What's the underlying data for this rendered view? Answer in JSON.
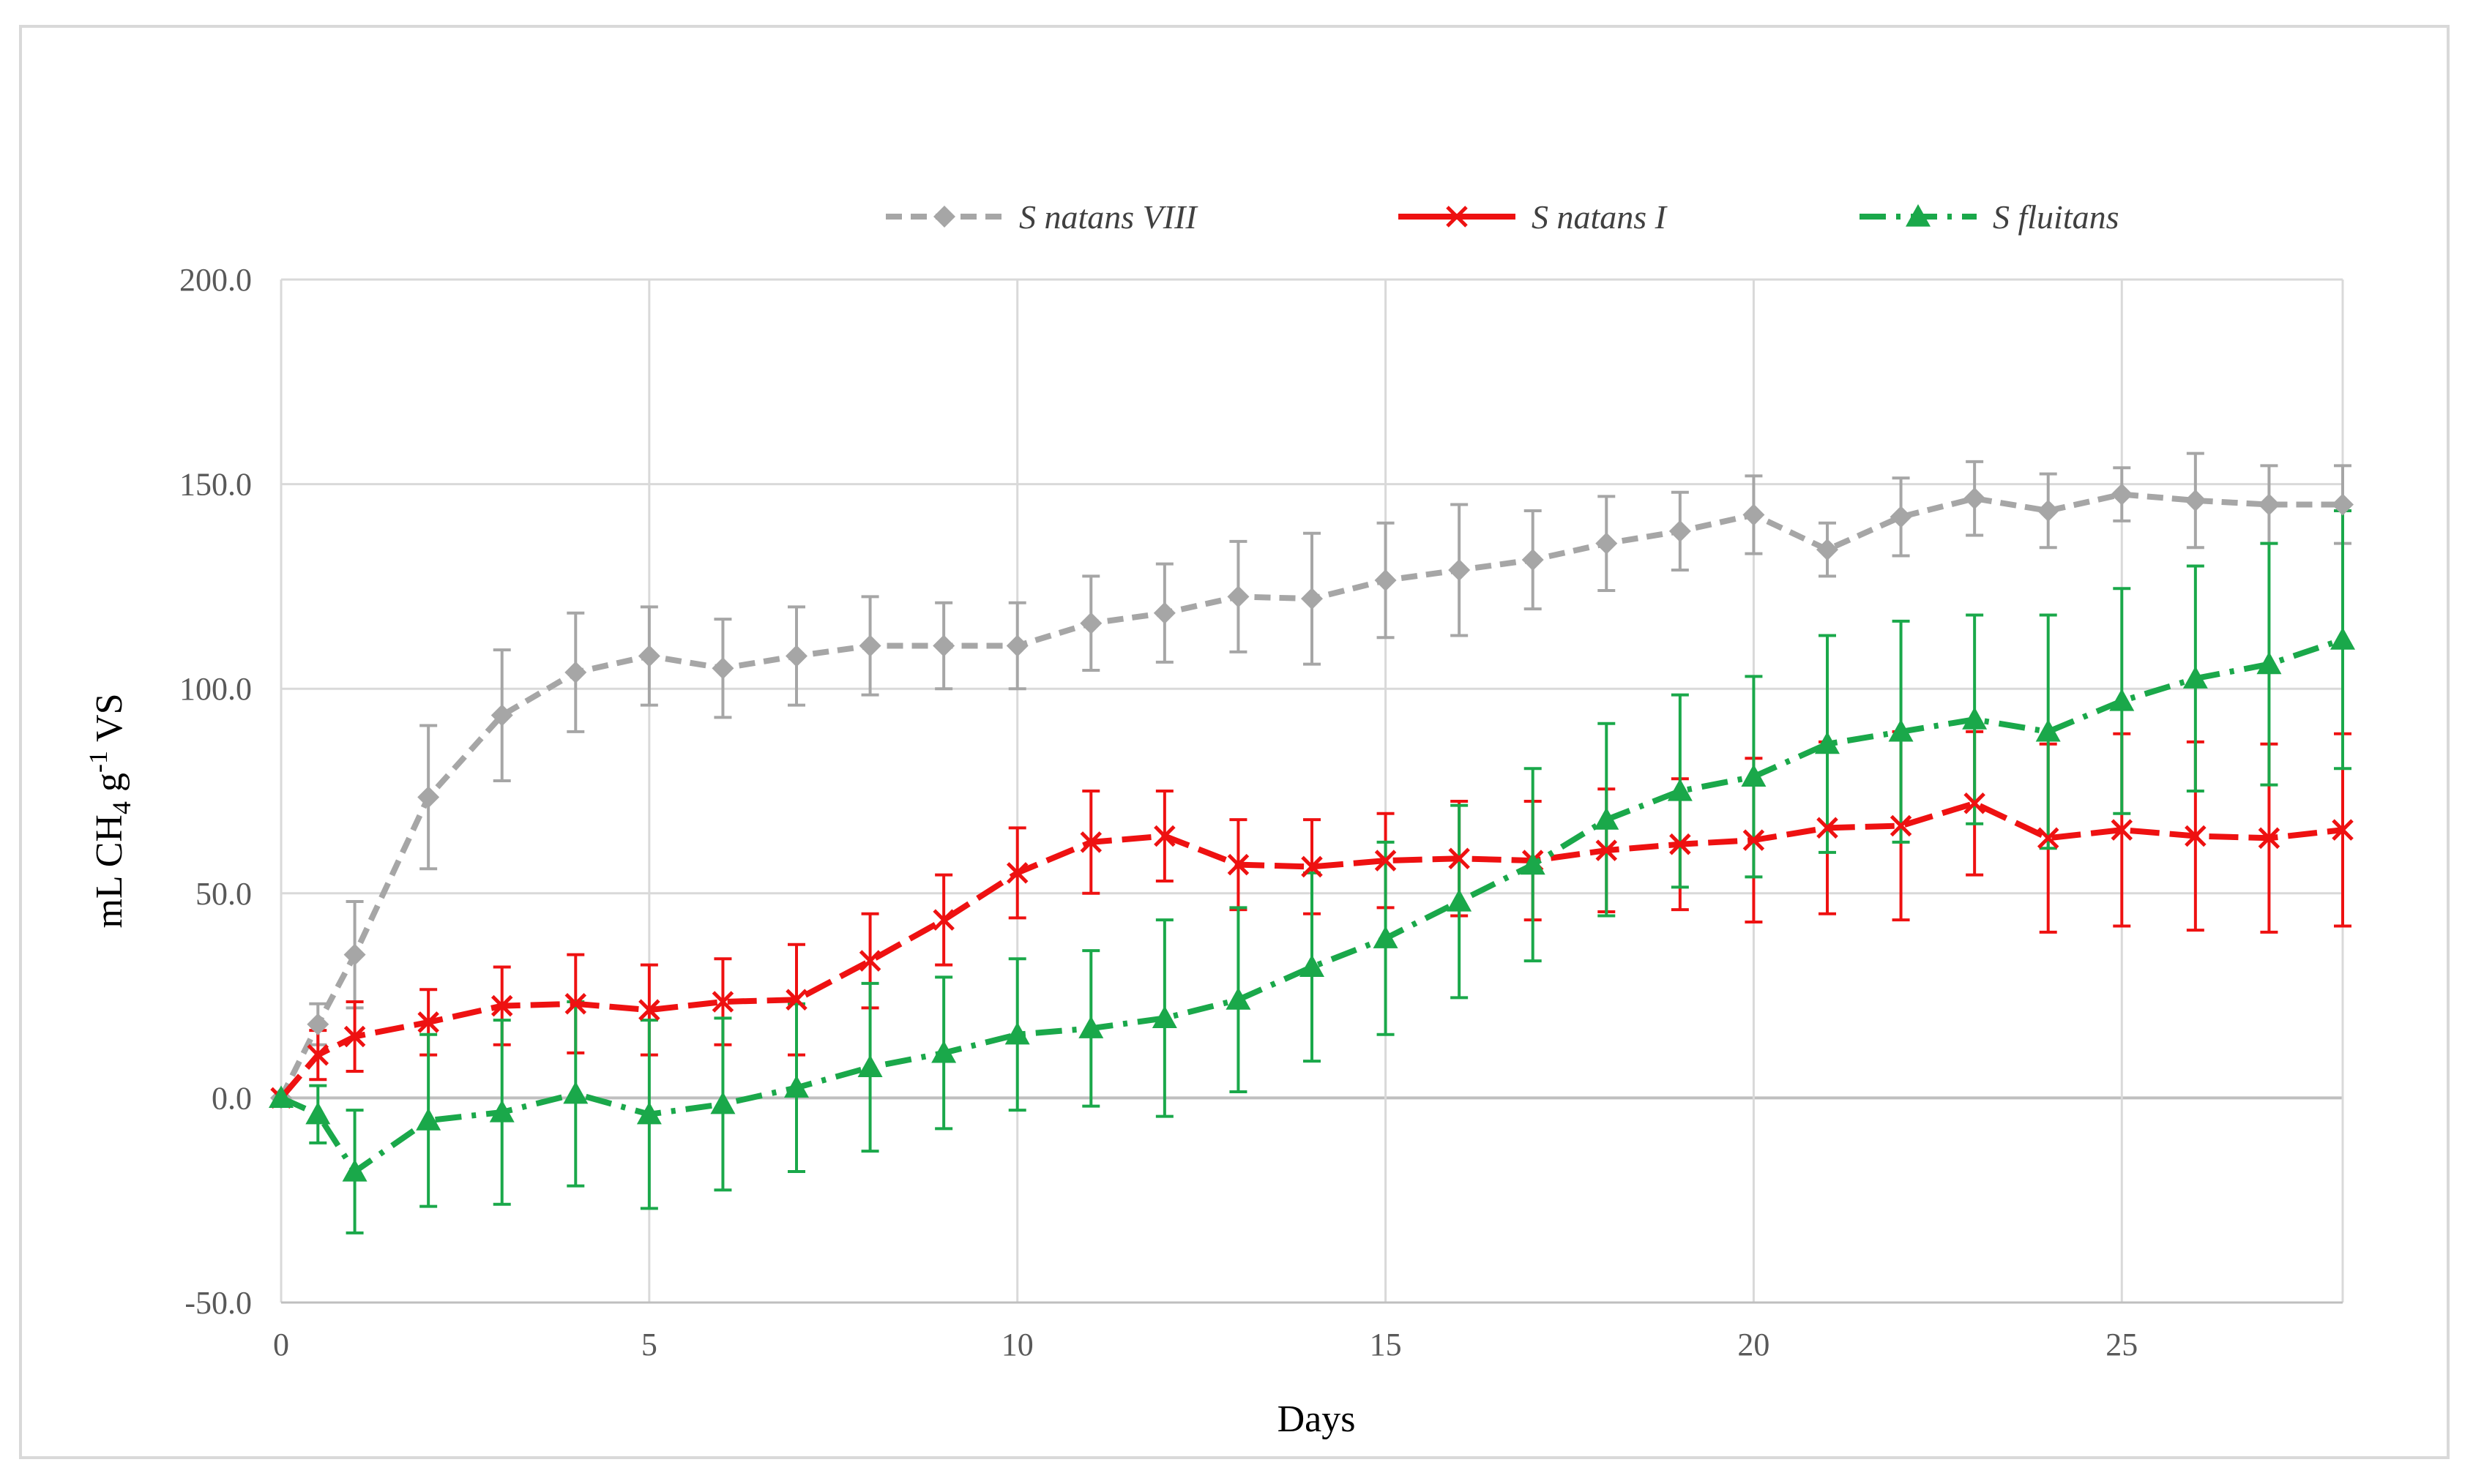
{
  "chart_data": {
    "type": "line",
    "title": "",
    "xlabel": "Days",
    "ylabel": "mL CH4 g-1 VS",
    "ylabel_parts": {
      "pre": "mL CH",
      "sub": "4",
      "mid": " g",
      "sup": "-1",
      "post": " VS"
    },
    "xlim": [
      0,
      28
    ],
    "ylim": [
      -50,
      200
    ],
    "xticks": [
      0,
      5,
      10,
      15,
      20,
      25
    ],
    "xtick_labels": [
      "0",
      "5",
      "10",
      "15",
      "20",
      "25"
    ],
    "yticks": [
      -50,
      0,
      50,
      100,
      150,
      200
    ],
    "ytick_labels": [
      "-50.0",
      "0.0",
      "50.0",
      "100.0",
      "150.0",
      "200.0"
    ],
    "grid": true,
    "legend_position": "top",
    "x": [
      0,
      0.5,
      1,
      2,
      3,
      4,
      5,
      6,
      7,
      8,
      9,
      10,
      11,
      12,
      13,
      14,
      15,
      16,
      17,
      18,
      19,
      20,
      21,
      22,
      23,
      24,
      25,
      26,
      27,
      28
    ],
    "series": [
      {
        "name": "S natans VIII",
        "color": "#a6a6a6",
        "marker": "diamond",
        "line_style": "dashed",
        "values": [
          0,
          18,
          35,
          73.5,
          93.5,
          104,
          108,
          105,
          108,
          110.5,
          110.5,
          110.5,
          116,
          118.5,
          122.5,
          122,
          126.5,
          129,
          131.5,
          135.5,
          138.5,
          142.5,
          134,
          142,
          146.5,
          143.5,
          147.5,
          146,
          145,
          145
        ],
        "errors": [
          0,
          5,
          13,
          17.5,
          16,
          14.5,
          12,
          12,
          12,
          12,
          10.5,
          10.5,
          11.5,
          12,
          13.5,
          16,
          14,
          16,
          12,
          11.5,
          9.5,
          9.5,
          6.5,
          9.5,
          9,
          9,
          6.5,
          11.5,
          9.5,
          9.5
        ]
      },
      {
        "name": "S natans I",
        "color": "#ee1111",
        "marker": "x",
        "line_style": "longdash",
        "values": [
          0,
          10.5,
          15,
          18.5,
          22.5,
          23,
          21.5,
          23.5,
          24,
          33.5,
          43.5,
          55,
          62.5,
          64,
          57,
          56.5,
          58,
          58.5,
          58,
          60.5,
          62,
          63,
          66,
          66.5,
          72,
          63.5,
          65.5,
          64,
          63.5,
          65.5
        ],
        "errors": [
          0,
          6,
          8.5,
          8,
          9.5,
          12,
          11,
          10.5,
          13.5,
          11.5,
          11,
          11,
          12.5,
          11,
          11,
          11.5,
          11.5,
          14,
          14.5,
          15,
          16,
          20,
          21,
          23,
          17.5,
          23,
          23.5,
          23,
          23,
          23.5
        ]
      },
      {
        "name": "S fluitans",
        "color": "#1aa84a",
        "marker": "triangle",
        "line_style": "dashdot",
        "values": [
          0,
          -4,
          -18,
          -5.5,
          -3.5,
          1,
          -4,
          -1.5,
          2.5,
          7.5,
          11,
          15.5,
          17,
          19.5,
          24,
          32,
          39,
          48,
          57,
          68,
          75,
          78.5,
          86.5,
          89.5,
          92.5,
          89.5,
          97,
          102.5,
          106,
          112
        ],
        "errors": [
          0,
          7,
          15,
          21,
          22.5,
          22.5,
          23,
          21,
          20.5,
          20.5,
          18.5,
          18.5,
          19,
          24,
          22.5,
          23,
          23.5,
          23.5,
          23.5,
          23.5,
          23.5,
          24.5,
          26.5,
          27,
          25.5,
          28.5,
          27.5,
          27.5,
          29.5,
          31.5
        ]
      }
    ]
  }
}
